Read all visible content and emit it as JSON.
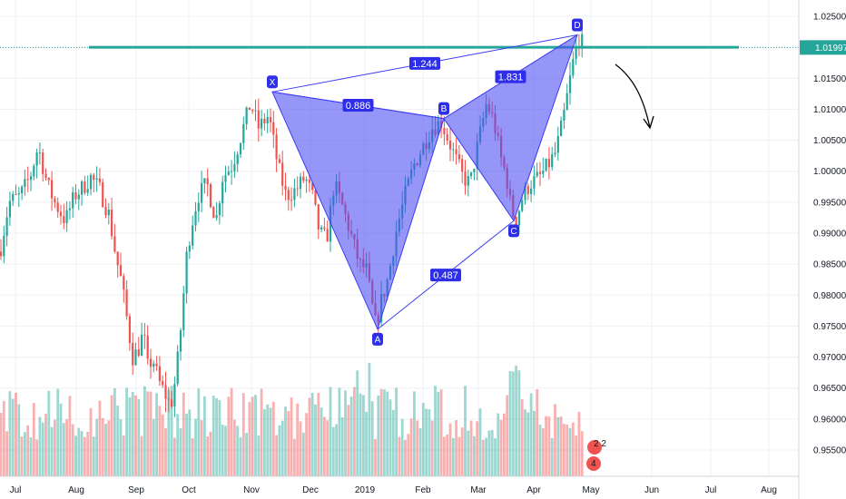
{
  "chart_data": {
    "type": "candlestick",
    "y_axis": {
      "ticks": [
        "1.02500",
        "1.02000",
        "1.01500",
        "1.01000",
        "1.00500",
        "1.00000",
        "0.99500",
        "0.99000",
        "0.98500",
        "0.98000",
        "0.97500",
        "0.97000",
        "0.96500",
        "0.96000",
        "0.95500"
      ],
      "range": [
        0.952,
        1.027
      ]
    },
    "x_axis": {
      "ticks": [
        "Jul",
        "Aug",
        "Sep",
        "Oct",
        "Nov",
        "Dec",
        "2019",
        "Feb",
        "Mar",
        "Apr",
        "May",
        "Jun",
        "Jul",
        "Aug"
      ]
    },
    "current_price": {
      "value": 1.01997,
      "label": "1.01997"
    },
    "resistance_level": 1.02,
    "harmonic_pattern": {
      "points": [
        {
          "name": "X",
          "value": 1.0128
        },
        {
          "name": "A",
          "value": 0.9745
        },
        {
          "name": "B",
          "value": 1.0085
        },
        {
          "name": "C",
          "value": 0.992
        },
        {
          "name": "D",
          "value": 1.022
        }
      ],
      "ratios": [
        {
          "label": "0.886",
          "between": [
            "X",
            "B"
          ]
        },
        {
          "label": "1.244",
          "between": [
            "X",
            "D"
          ]
        },
        {
          "label": "0.487",
          "between": [
            "A",
            "C"
          ]
        },
        {
          "label": "1.831",
          "between": [
            "B",
            "D"
          ]
        }
      ]
    },
    "projection": "down",
    "colors": {
      "up": "#26a69a",
      "down": "#ef5350",
      "pattern": "#3b3bf5",
      "resistance": "#26a69a",
      "grid": "#eef0f4"
    }
  },
  "badge": {
    "text_1": "2 2",
    "text_2": "4"
  }
}
